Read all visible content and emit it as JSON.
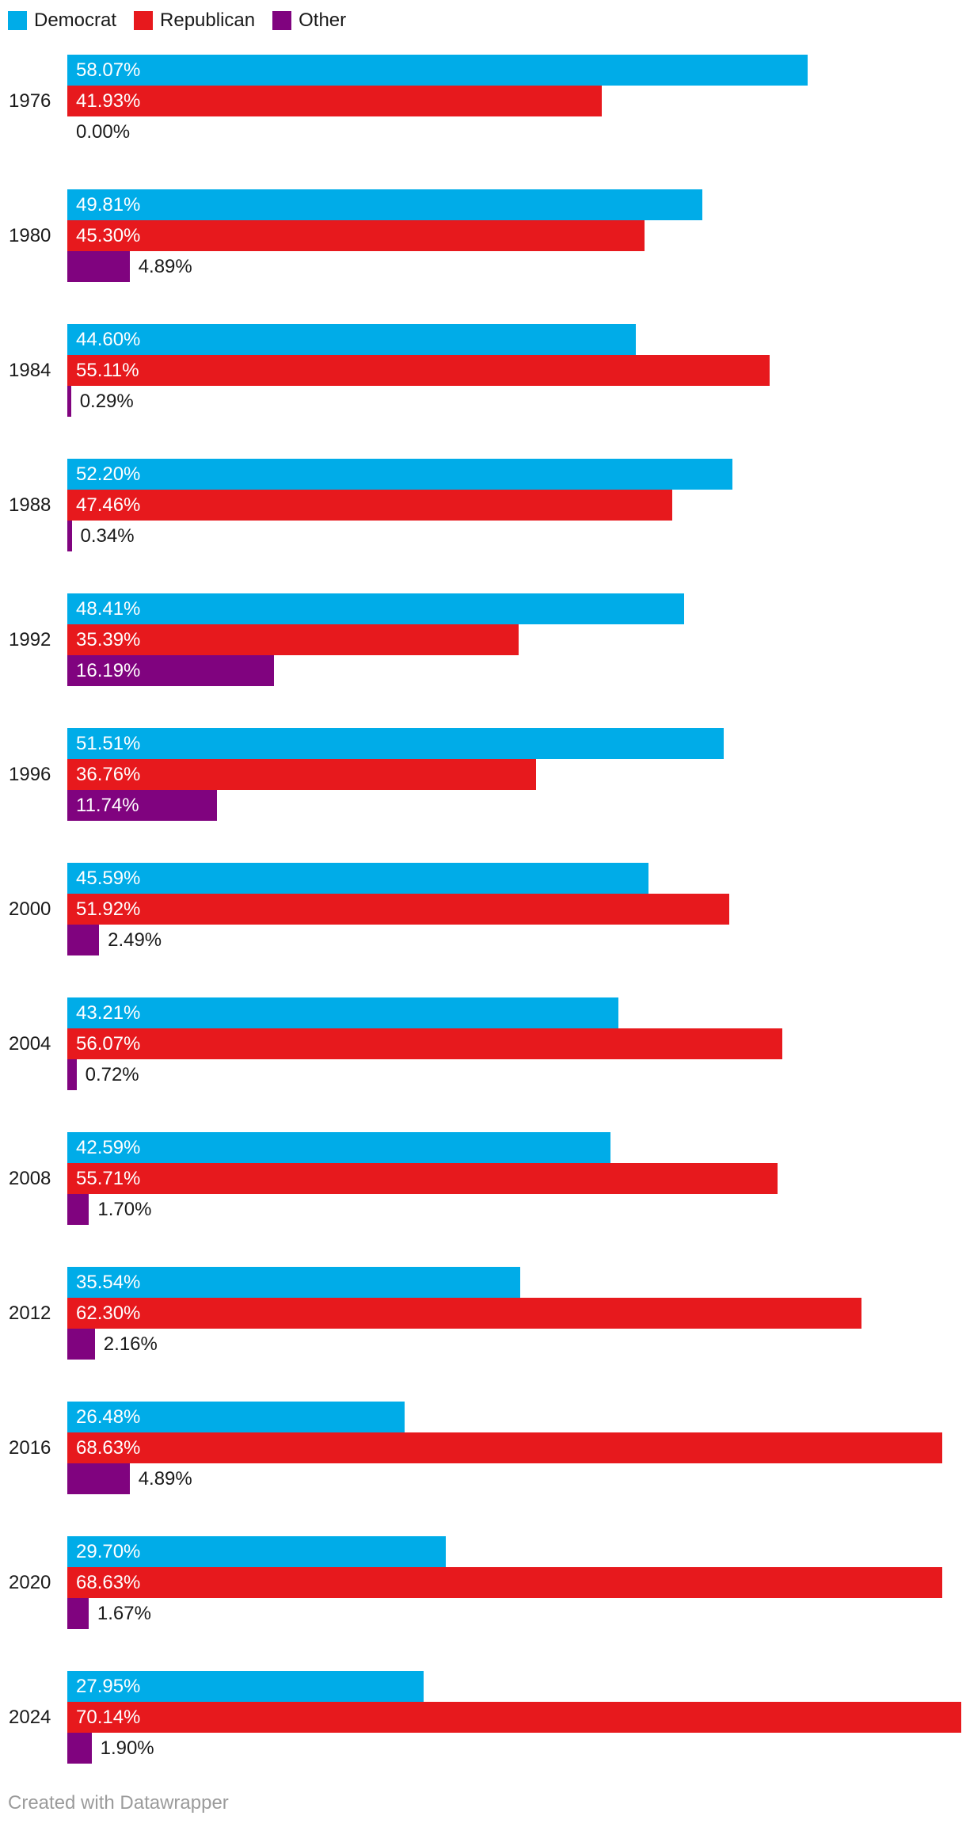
{
  "legend": {
    "items": [
      {
        "label": "Democrat",
        "color": "#00ace8"
      },
      {
        "label": "Republican",
        "color": "#e7191d"
      },
      {
        "label": "Other",
        "color": "#80037f"
      }
    ]
  },
  "chart_data": {
    "type": "bar",
    "orientation": "horizontal",
    "title": "",
    "xlabel": "",
    "ylabel": "",
    "value_format": "0.00%",
    "legend_position": "top-left",
    "grid": false,
    "axis_max_value": 70.14,
    "categories": [
      "1976",
      "1980",
      "1984",
      "1988",
      "1992",
      "1996",
      "2000",
      "2004",
      "2008",
      "2012",
      "2016",
      "2020",
      "2024"
    ],
    "series": [
      {
        "name": "Democrat",
        "color": "#00ace8",
        "values": [
          58.07,
          49.81,
          44.6,
          52.2,
          48.41,
          51.51,
          45.59,
          43.21,
          42.59,
          35.54,
          26.48,
          29.7,
          27.95
        ]
      },
      {
        "name": "Republican",
        "color": "#e7191d",
        "values": [
          41.93,
          45.3,
          55.11,
          47.46,
          35.39,
          36.76,
          51.92,
          56.07,
          55.71,
          62.3,
          68.63,
          68.63,
          70.14
        ]
      },
      {
        "name": "Other",
        "color": "#80037f",
        "values": [
          0.0,
          4.89,
          0.29,
          0.34,
          16.19,
          11.74,
          2.49,
          0.72,
          1.7,
          2.16,
          4.89,
          1.67,
          1.9
        ]
      }
    ]
  },
  "footer": {
    "credit": "Created with Datawrapper"
  }
}
